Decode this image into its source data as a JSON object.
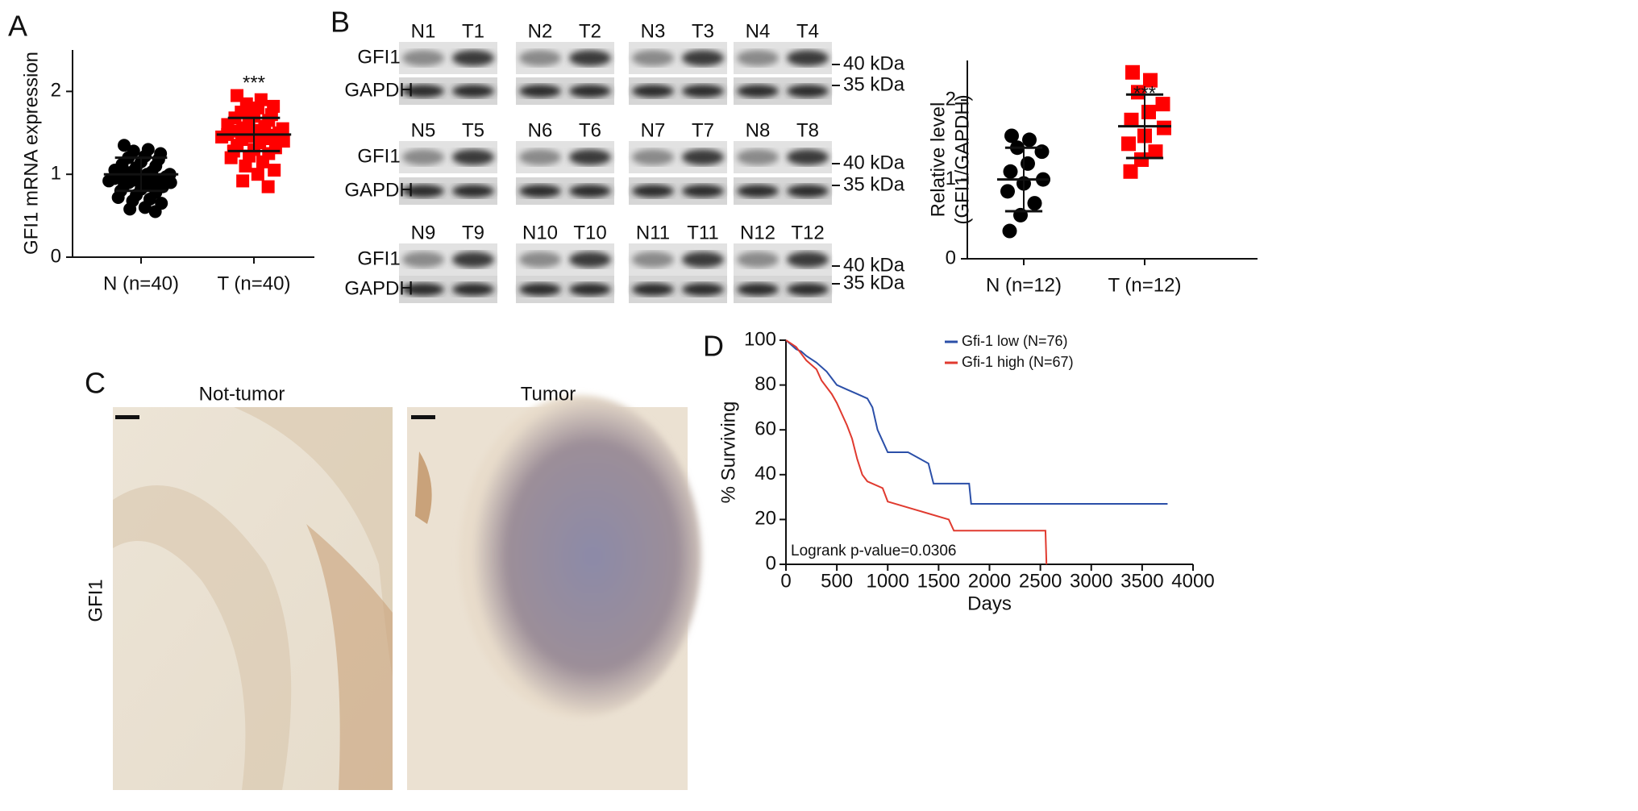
{
  "panel_letters": [
    "A",
    "B",
    "C",
    "D"
  ],
  "chart_data": [
    {
      "type": "dot",
      "ylabel": "GFI1 mRNA expression",
      "ylim": [
        0,
        2.5
      ],
      "yticks": [
        0,
        1,
        2
      ],
      "annotation": "***",
      "groups": [
        {
          "label": "N (n=40)",
          "color": "#000000",
          "marker": "circle",
          "mean": 1.0,
          "sd": 0.2,
          "values": [
            1.35,
            1.3,
            1.28,
            1.25,
            1.22,
            1.2,
            1.18,
            1.15,
            1.12,
            1.1,
            1.08,
            1.05,
            1.03,
            1.02,
            1.0,
            1.0,
            0.98,
            0.97,
            0.96,
            0.95,
            0.94,
            0.93,
            0.92,
            0.91,
            0.9,
            0.9,
            0.88,
            0.87,
            0.85,
            0.82,
            0.8,
            0.78,
            0.75,
            0.72,
            0.7,
            0.68,
            0.65,
            0.6,
            0.58,
            0.55
          ]
        },
        {
          "label": "T (n=40)",
          "color": "#ff0000",
          "marker": "square",
          "mean": 1.48,
          "sd": 0.2,
          "values": [
            1.95,
            1.9,
            1.85,
            1.82,
            1.8,
            1.75,
            1.72,
            1.7,
            1.68,
            1.65,
            1.62,
            1.6,
            1.58,
            1.56,
            1.55,
            1.53,
            1.52,
            1.5,
            1.5,
            1.48,
            1.47,
            1.46,
            1.45,
            1.43,
            1.42,
            1.4,
            1.38,
            1.35,
            1.32,
            1.3,
            1.28,
            1.25,
            1.22,
            1.2,
            1.15,
            1.1,
            1.05,
            1.0,
            0.92,
            0.85
          ]
        }
      ]
    },
    {
      "type": "dot",
      "ylabel": [
        "Relative level",
        "(GFI1/GAPDH)"
      ],
      "ylim": [
        0,
        2.5
      ],
      "yticks": [
        0,
        1,
        2
      ],
      "annotation": "***",
      "groups": [
        {
          "label": "N (n=12)",
          "color": "#000000",
          "marker": "circle",
          "mean": 1.0,
          "sd": 0.4,
          "values": [
            1.55,
            1.5,
            1.4,
            1.35,
            1.2,
            1.1,
            1.0,
            0.95,
            0.85,
            0.7,
            0.55,
            0.35
          ]
        },
        {
          "label": "T (n=12)",
          "color": "#ff0000",
          "marker": "square",
          "mean": 1.67,
          "sd": 0.4,
          "values": [
            2.35,
            2.25,
            2.1,
            1.95,
            1.85,
            1.75,
            1.65,
            1.55,
            1.45,
            1.35,
            1.25,
            1.1
          ]
        }
      ]
    },
    {
      "type": "line",
      "xlabel": "Days",
      "ylabel": "% Surviving",
      "xlim": [
        0,
        4000
      ],
      "ylim": [
        0,
        100
      ],
      "xticks": [
        0,
        500,
        1000,
        1500,
        2000,
        2500,
        3000,
        3500,
        4000
      ],
      "yticks": [
        0,
        20,
        40,
        60,
        80,
        100
      ],
      "annotation": "Logrank p-value=0.0306",
      "legend": "top-right",
      "series": [
        {
          "name": "Gfi-1 low (N=76)",
          "color": "#2b4fa8",
          "x": [
            0,
            50,
            100,
            150,
            200,
            300,
            400,
            450,
            500,
            600,
            700,
            800,
            850,
            900,
            950,
            1000,
            1200,
            1400,
            1450,
            1800,
            1820,
            3750
          ],
          "values": [
            100,
            98,
            96,
            95,
            93,
            90,
            86,
            83,
            80,
            78,
            76,
            74,
            70,
            60,
            55,
            50,
            50,
            45,
            36,
            36,
            27,
            27
          ]
        },
        {
          "name": "Gfi-1 high (N=67)",
          "color": "#e03a2f",
          "x": [
            0,
            100,
            150,
            200,
            300,
            350,
            400,
            450,
            500,
            550,
            600,
            650,
            700,
            750,
            800,
            950,
            1000,
            1300,
            1600,
            1650,
            2550,
            2560
          ],
          "values": [
            100,
            97,
            94,
            91,
            87,
            82,
            79,
            76,
            72,
            67,
            62,
            56,
            47,
            40,
            37,
            34,
            28,
            24,
            20,
            15,
            15,
            0
          ]
        }
      ]
    }
  ],
  "blot": {
    "lanes": [
      [
        "N1",
        "T1"
      ],
      [
        "N2",
        "T2"
      ],
      [
        "N3",
        "T3"
      ],
      [
        "N4",
        "T4"
      ],
      [
        "N5",
        "T5"
      ],
      [
        "N6",
        "T6"
      ],
      [
        "N7",
        "T7"
      ],
      [
        "N8",
        "T8"
      ],
      [
        "N9",
        "T9"
      ],
      [
        "N10",
        "T10"
      ],
      [
        "N11",
        "T11"
      ],
      [
        "N12",
        "T12"
      ]
    ],
    "rows": [
      "GFI1",
      "GAPDH"
    ],
    "markers": [
      "40 kDa",
      "35 kDa"
    ]
  },
  "histology": {
    "titles": [
      "Not-tumor",
      "Tumor"
    ],
    "row_label": "GFI1"
  }
}
